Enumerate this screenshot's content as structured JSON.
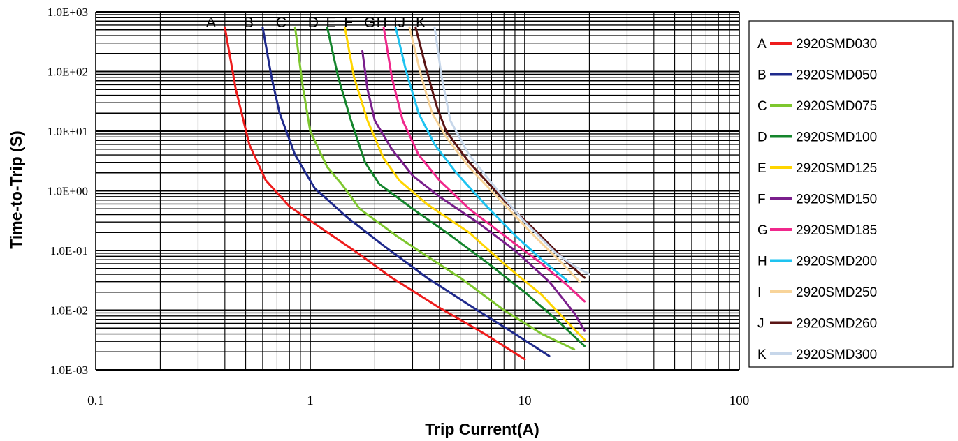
{
  "chart_data": {
    "type": "line",
    "xlabel": "Trip Current(A)",
    "ylabel": "Time-to-Trip (S)",
    "xscale": "log",
    "yscale": "log",
    "xlim": [
      0.1,
      100
    ],
    "ylim": [
      0.001,
      1000
    ],
    "grid": true,
    "legend_position": "right",
    "x_tick_labels": [
      "0.1",
      "1",
      "10",
      "100"
    ],
    "y_tick_labels": [
      "1.0E-03",
      "1.0E-02",
      "1.0E-01",
      "1.0E+00",
      "1.0E+01",
      "1.0E+02",
      "1.0E+03"
    ],
    "series": [
      {
        "letter": "A",
        "name": "2920SMD030",
        "color": "#ee1c1c",
        "points": [
          [
            0.4,
            550
          ],
          [
            0.45,
            50
          ],
          [
            0.52,
            6
          ],
          [
            0.62,
            1.5
          ],
          [
            0.8,
            0.55
          ],
          [
            1.1,
            0.25
          ],
          [
            1.6,
            0.1
          ],
          [
            2.4,
            0.035
          ],
          [
            4,
            0.011
          ],
          [
            6.5,
            0.004
          ],
          [
            10,
            0.0015
          ]
        ]
      },
      {
        "letter": "B",
        "name": "2920SMD050",
        "color": "#1f2a8c",
        "points": [
          [
            0.6,
            550
          ],
          [
            0.66,
            80
          ],
          [
            0.72,
            20
          ],
          [
            0.85,
            4
          ],
          [
            1.05,
            1.1
          ],
          [
            1.5,
            0.35
          ],
          [
            2.2,
            0.12
          ],
          [
            3.5,
            0.035
          ],
          [
            6,
            0.01
          ],
          [
            9,
            0.004
          ],
          [
            13,
            0.0017
          ]
        ]
      },
      {
        "letter": "C",
        "name": "2920SMD075",
        "color": "#7ec72e",
        "points": [
          [
            0.85,
            550
          ],
          [
            0.92,
            60
          ],
          [
            1.0,
            10
          ],
          [
            1.2,
            2.5
          ],
          [
            1.4,
            1.3
          ],
          [
            1.7,
            0.5
          ],
          [
            2.5,
            0.18
          ],
          [
            3.5,
            0.08
          ],
          [
            5,
            0.035
          ],
          [
            8,
            0.01
          ],
          [
            12,
            0.004
          ],
          [
            17,
            0.0022
          ]
        ]
      },
      {
        "letter": "D",
        "name": "2920SMD100",
        "color": "#14852c",
        "points": [
          [
            1.2,
            550
          ],
          [
            1.35,
            80
          ],
          [
            1.55,
            15
          ],
          [
            1.8,
            3
          ],
          [
            2.1,
            1.3
          ],
          [
            3,
            0.5
          ],
          [
            4.5,
            0.18
          ],
          [
            7,
            0.055
          ],
          [
            10,
            0.02
          ],
          [
            14,
            0.007
          ],
          [
            19,
            0.0025
          ]
        ]
      },
      {
        "letter": "E",
        "name": "2920SMD125",
        "color": "#ffd500",
        "points": [
          [
            1.45,
            550
          ],
          [
            1.6,
            80
          ],
          [
            1.85,
            15
          ],
          [
            2.2,
            3.5
          ],
          [
            2.6,
            1.5
          ],
          [
            3.5,
            0.6
          ],
          [
            5.5,
            0.2
          ],
          [
            8,
            0.06
          ],
          [
            12,
            0.018
          ],
          [
            16,
            0.006
          ],
          [
            19,
            0.0032
          ]
        ]
      },
      {
        "letter": "F",
        "name": "2920SMD150",
        "color": "#7a1f8c",
        "points": [
          [
            1.75,
            220
          ],
          [
            1.85,
            50
          ],
          [
            2,
            15
          ],
          [
            2.4,
            5
          ],
          [
            3,
            1.8
          ],
          [
            4,
            0.8
          ],
          [
            6,
            0.3
          ],
          [
            9,
            0.1
          ],
          [
            13,
            0.03
          ],
          [
            17,
            0.009
          ],
          [
            19,
            0.0045
          ]
        ]
      },
      {
        "letter": "G",
        "name": "2920SMD185",
        "color": "#f0288c",
        "points": [
          [
            2.2,
            550
          ],
          [
            2.4,
            80
          ],
          [
            2.7,
            15
          ],
          [
            3.2,
            4
          ],
          [
            4,
            1.5
          ],
          [
            5.5,
            0.5
          ],
          [
            8,
            0.18
          ],
          [
            12,
            0.06
          ],
          [
            16,
            0.025
          ],
          [
            19,
            0.014
          ]
        ]
      },
      {
        "letter": "H",
        "name": "2920SMD200",
        "color": "#1ec3f0",
        "points": [
          [
            2.5,
            550
          ],
          [
            2.8,
            100
          ],
          [
            3.2,
            20
          ],
          [
            3.8,
            6
          ],
          [
            4.8,
            2
          ],
          [
            6.5,
            0.6
          ],
          [
            9,
            0.18
          ],
          [
            12,
            0.07
          ],
          [
            16,
            0.03
          ]
        ]
      },
      {
        "letter": "I",
        "name": "2920SMD250",
        "color": "#f8d49a",
        "points": [
          [
            2.9,
            550
          ],
          [
            3.3,
            80
          ],
          [
            3.7,
            20
          ],
          [
            4.3,
            8
          ],
          [
            5.5,
            2.5
          ],
          [
            8,
            0.6
          ],
          [
            11,
            0.18
          ],
          [
            15,
            0.06
          ],
          [
            18,
            0.03
          ]
        ]
      },
      {
        "letter": "J",
        "name": "2920SMD260",
        "color": "#5a1414",
        "points": [
          [
            3.1,
            550
          ],
          [
            3.5,
            100
          ],
          [
            3.9,
            25
          ],
          [
            4.3,
            10
          ],
          [
            5.5,
            3
          ],
          [
            8,
            0.7
          ],
          [
            12,
            0.17
          ],
          [
            16,
            0.06
          ],
          [
            19,
            0.035
          ]
        ]
      },
      {
        "letter": "K",
        "name": "2920SMD300",
        "color": "#c7d7ea",
        "points": [
          [
            3.8,
            550
          ],
          [
            4.1,
            80
          ],
          [
            4.5,
            15
          ],
          [
            5.5,
            4
          ],
          [
            7.5,
            1
          ],
          [
            10,
            0.3
          ],
          [
            14,
            0.09
          ],
          [
            17,
            0.055
          ],
          [
            20,
            0.04
          ]
        ]
      }
    ]
  }
}
